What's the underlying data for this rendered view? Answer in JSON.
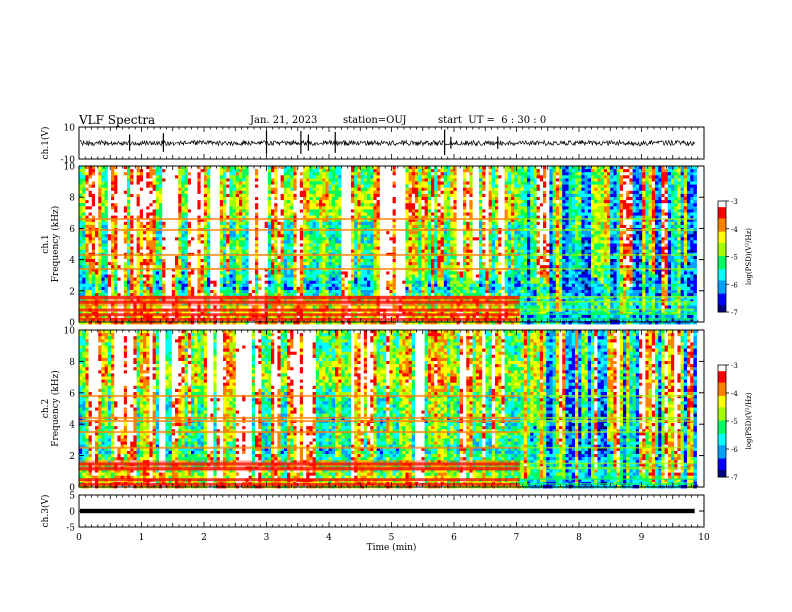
{
  "header": {
    "title": "VLF Spectra",
    "date": "Jan. 21, 2023",
    "station": "station=OUJ",
    "start": "start  UT =  6 : 30 : 0"
  },
  "chart_data": [
    {
      "type": "line",
      "panel": "ch1-waveform",
      "ylabel": "ch.1(V)",
      "ylim": [
        -10,
        10
      ],
      "yticks": [
        "10",
        "-10"
      ],
      "xlim": [
        0,
        10
      ],
      "baseline_v": 0,
      "noise_amplitude_v": 1,
      "spike_times_min": [
        0.81,
        1.35,
        3.0,
        3.55,
        3.67,
        4.1,
        5.85,
        5.95,
        6.7
      ]
    },
    {
      "type": "heatmap",
      "panel": "ch1-spectrogram",
      "ylabel": "ch.1\nFrequency (kHz)",
      "ylim": [
        0,
        10
      ],
      "yticks": [
        "0",
        "2",
        "4",
        "6",
        "8",
        "10"
      ],
      "xlim": [
        0,
        10
      ],
      "data_end_min": 9.85,
      "transition_min": 7.05,
      "colorbar": {
        "label": "log(PSD)(V²/Hz)",
        "ticks": [
          "-3",
          "-4",
          "-5",
          "-6",
          "-7"
        ],
        "range": [
          -7,
          -3
        ]
      },
      "bands_khz": [
        0.2,
        0.5,
        0.8,
        1.3,
        1.6,
        3.4,
        4.3,
        5.9,
        6.6
      ]
    },
    {
      "type": "heatmap",
      "panel": "ch2-spectrogram",
      "ylabel": "ch.2\nFrequency (kHz)",
      "ylim": [
        0,
        10
      ],
      "yticks": [
        "0",
        "2",
        "4",
        "6",
        "8",
        "10"
      ],
      "xlim": [
        0,
        10
      ],
      "data_end_min": 9.85,
      "transition_min": 7.05,
      "colorbar": {
        "label": "log(PSD)(V²/Hz)",
        "ticks": [
          "-3",
          "-4",
          "-5",
          "-6",
          "-7"
        ],
        "range": [
          -7,
          -3
        ]
      },
      "bands_khz": [
        0.2,
        0.5,
        1.2,
        1.5,
        2.5,
        3.5,
        4.2,
        4.4,
        5.8
      ]
    },
    {
      "type": "line",
      "panel": "ch3-waveform",
      "ylabel": "ch.3(V)",
      "ylim": [
        -5,
        5
      ],
      "yticks": [
        "5",
        "0",
        "-5"
      ],
      "xlim": [
        0,
        10
      ],
      "baseline_v": 0
    }
  ],
  "xaxis": {
    "label": "Time (min)",
    "ticks": [
      "0",
      "1",
      "2",
      "3",
      "4",
      "5",
      "6",
      "7",
      "8",
      "9",
      "10"
    ]
  },
  "colors": {
    "colormap": [
      "#000080",
      "#0000ff",
      "#00a0ff",
      "#00ffff",
      "#00ff60",
      "#a0ff00",
      "#ffff00",
      "#ff8000",
      "#ff0000",
      "#ffffff"
    ]
  }
}
